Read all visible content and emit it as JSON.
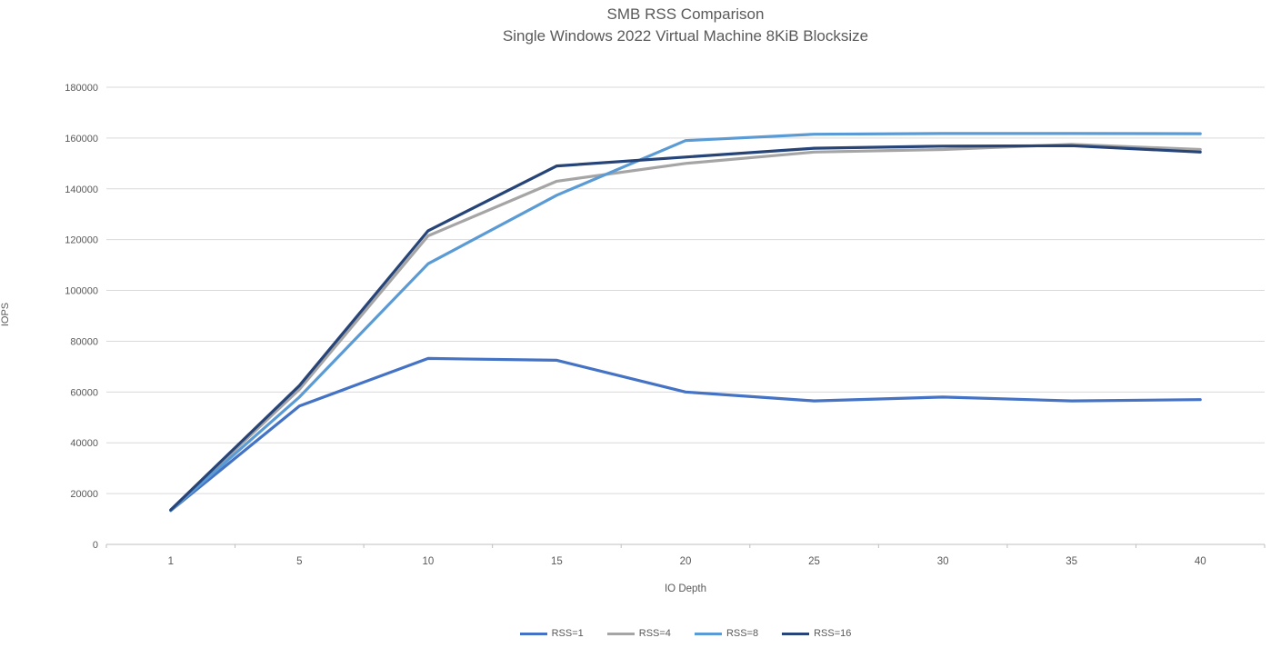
{
  "chart_data": {
    "type": "line",
    "title": "SMB RSS Comparison",
    "subtitle": "Single Windows 2022 Virtual Machine 8KiB Blocksize",
    "xlabel": "IO Depth",
    "ylabel": "IOPS",
    "categories": [
      1,
      5,
      10,
      15,
      20,
      25,
      30,
      35,
      40
    ],
    "series": [
      {
        "name": "RSS=1",
        "color": "#4472C4",
        "values": [
          13300,
          54500,
          73200,
          72500,
          60000,
          56500,
          58000,
          56500,
          57000
        ]
      },
      {
        "name": "RSS=4",
        "color": "#A5A5A5",
        "values": [
          13500,
          61000,
          121500,
          143000,
          150000,
          154500,
          155500,
          157500,
          155500
        ]
      },
      {
        "name": "RSS=8",
        "color": "#5B9BD5",
        "values": [
          13400,
          58000,
          110500,
          137500,
          159000,
          161500,
          161800,
          161800,
          161700
        ]
      },
      {
        "name": "RSS=16",
        "color": "#264478",
        "values": [
          13600,
          62500,
          123500,
          149000,
          152500,
          156000,
          156800,
          157000,
          154500
        ]
      }
    ],
    "ylim": [
      0,
      180000
    ],
    "ytick_step": 20000,
    "grid": true,
    "legend_position": "bottom"
  },
  "colors": {
    "text": "#595959",
    "gridline": "#D9D9D9",
    "axis": "#BFBFBF",
    "background": "#FFFFFF"
  }
}
